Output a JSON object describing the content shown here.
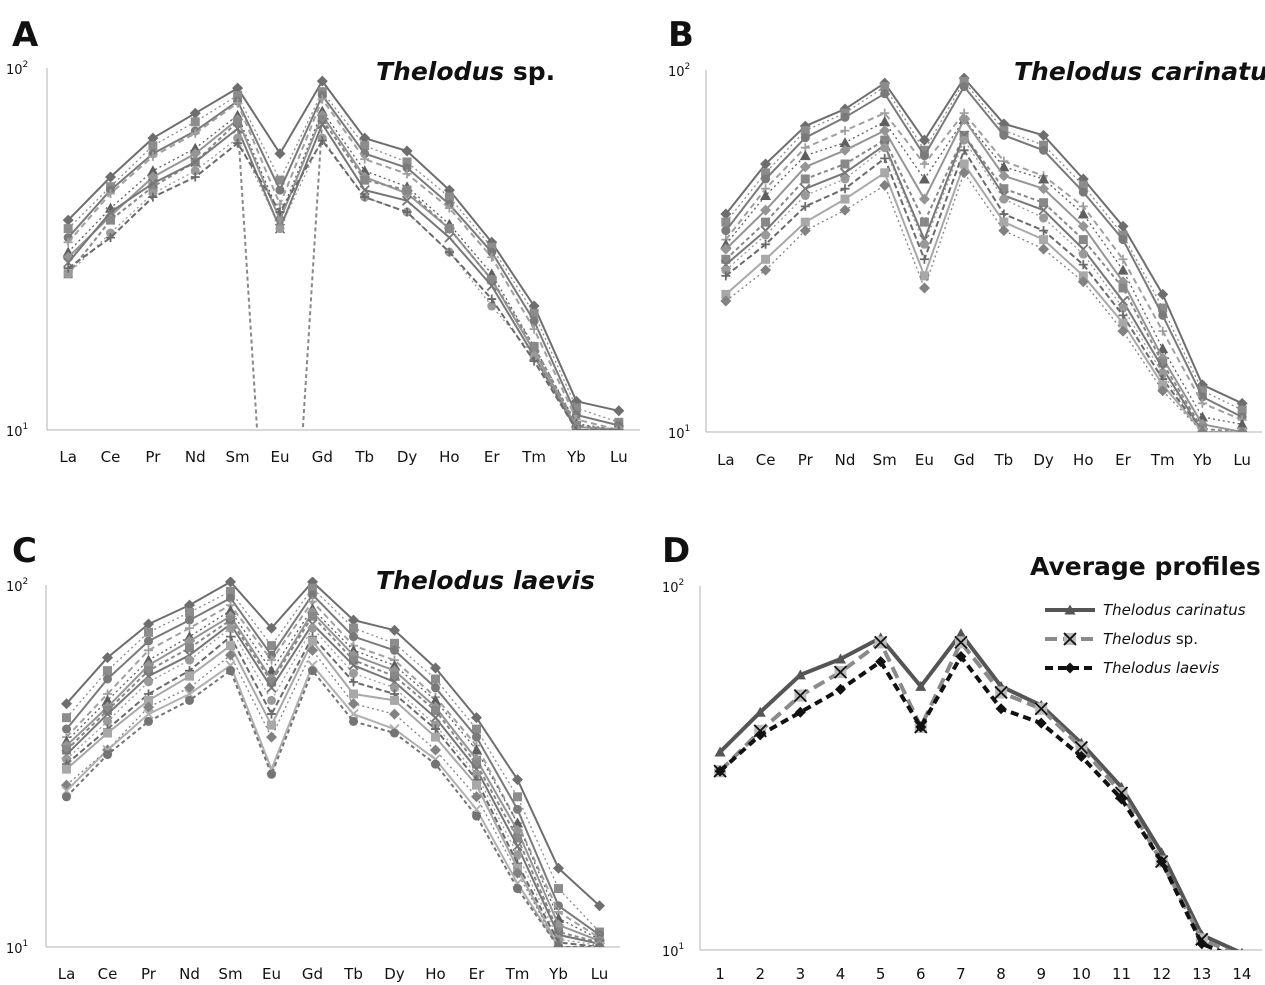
{
  "chart_data": [
    {
      "panel": "A",
      "type": "line",
      "title_italic": "Thelodus",
      "title_plain": "sp.",
      "yscale": "log",
      "ylim": [
        10,
        100
      ],
      "y_tick_labels": [
        "10",
        "10"
      ],
      "y_tick_exponents": [
        "2",
        "1"
      ],
      "categories": [
        "La",
        "Ce",
        "Pr",
        "Nd",
        "Sm",
        "Eu",
        "Gd",
        "Tb",
        "Dy",
        "Ho",
        "Er",
        "Tm",
        "Yb",
        "Lu"
      ],
      "series": [
        {
          "values": [
            38,
            50,
            64,
            75,
            88,
            58,
            92,
            64,
            59,
            46,
            33,
            22,
            12,
            11.3
          ]
        },
        {
          "values": [
            36,
            47,
            61,
            71,
            84,
            49,
            86,
            61,
            55,
            44,
            32,
            21,
            11.5,
            10.5
          ]
        },
        {
          "values": [
            34,
            46,
            58,
            67,
            81,
            46,
            84,
            58,
            53,
            42,
            31,
            20,
            11,
            10.3
          ]
        },
        {
          "values": [
            33,
            45,
            57,
            66,
            80,
            42,
            82,
            56,
            51,
            41,
            30,
            19,
            10.7,
            10
          ]
        },
        {
          "values": [
            31,
            41,
            52,
            60,
            74,
            39,
            76,
            52,
            47,
            37,
            27,
            17,
            10.4,
            10
          ]
        },
        {
          "values": [
            30,
            39,
            50,
            58,
            72,
            38,
            74,
            50,
            45,
            36,
            26,
            16.5,
            10.2,
            10
          ]
        },
        {
          "values": [
            27,
            38,
            47,
            55,
            71,
            1,
            72,
            49,
            46,
            36,
            26,
            17,
            10.3,
            10
          ]
        },
        {
          "values": [
            29,
            40,
            48,
            55,
            68,
            36,
            70,
            46,
            43,
            34,
            25,
            16,
            10,
            10
          ]
        },
        {
          "values": [
            27,
            35,
            45,
            52,
            64,
            36,
            64,
            44,
            40,
            31,
            22,
            16,
            10,
            10
          ]
        },
        {
          "values": [
            28,
            34,
            44,
            50,
            62,
            40,
            63,
            44,
            40,
            31,
            23,
            15.5,
            10,
            10
          ]
        }
      ]
    },
    {
      "panel": "B",
      "type": "line",
      "title_italic": "Thelodus carinatus",
      "yscale": "log",
      "ylim": [
        10,
        100
      ],
      "y_tick_labels": [
        "10",
        "10"
      ],
      "y_tick_exponents": [
        "2",
        "1"
      ],
      "categories": [
        "La",
        "Ce",
        "Pr",
        "Nd",
        "Sm",
        "Eu",
        "Gd",
        "Tb",
        "Dy",
        "Ho",
        "Er",
        "Tm",
        "Yb",
        "Lu"
      ],
      "series": [
        {
          "values": [
            40,
            55,
            70,
            78,
            92,
            64,
            95,
            71,
            66,
            50,
            37,
            24,
            13.5,
            12
          ]
        },
        {
          "values": [
            38,
            52,
            68,
            76,
            90,
            60,
            93,
            68,
            62,
            48,
            35,
            22,
            13,
            11.5
          ]
        },
        {
          "values": [
            36,
            50,
            65,
            74,
            86,
            58,
            90,
            66,
            60,
            46,
            34,
            21,
            12.5,
            11
          ]
        },
        {
          "values": [
            34,
            47,
            61,
            68,
            76,
            55,
            76,
            56,
            51,
            42,
            30,
            19,
            12,
            10.8
          ]
        },
        {
          "values": [
            33,
            45,
            58,
            63,
            72,
            50,
            73,
            54,
            50,
            40,
            28,
            17,
            11,
            10.5
          ]
        },
        {
          "values": [
            32,
            41,
            54,
            60,
            68,
            44,
            73,
            51,
            47,
            37,
            26,
            16,
            10.5,
            10
          ]
        },
        {
          "values": [
            30,
            38,
            50,
            55,
            64,
            38,
            66,
            47,
            43,
            34,
            25,
            15.5,
            10.2,
            10
          ]
        },
        {
          "values": [
            29,
            36,
            47,
            52,
            62,
            34,
            66,
            45,
            41,
            32,
            23,
            15,
            10,
            10
          ]
        },
        {
          "values": [
            28,
            35,
            45,
            50,
            61,
            33,
            64,
            44,
            39,
            31,
            22,
            14.5,
            10,
            10
          ]
        },
        {
          "values": [
            27,
            33,
            42,
            47,
            57,
            30,
            60,
            40,
            36,
            29,
            21,
            14,
            10,
            10
          ]
        },
        {
          "values": [
            24,
            30,
            38,
            44,
            52,
            27,
            55,
            38,
            34,
            27,
            20,
            13.5,
            10,
            10
          ]
        },
        {
          "values": [
            23,
            28,
            36,
            41,
            48,
            25,
            52,
            36,
            32,
            26,
            19,
            13,
            10,
            10
          ]
        }
      ]
    },
    {
      "panel": "C",
      "type": "line",
      "title_italic": "Thelodus laevis",
      "yscale": "log",
      "ylim": [
        10,
        100
      ],
      "y_tick_labels": [
        "10",
        "10"
      ],
      "y_tick_exponents": [
        "2",
        "1"
      ],
      "categories": [
        "La",
        "Ce",
        "Pr",
        "Nd",
        "Sm",
        "Eu",
        "Gd",
        "Tb",
        "Dy",
        "Ho",
        "Er",
        "Tm",
        "Yb",
        "Lu"
      ],
      "series": [
        {
          "values": [
            47,
            63,
            78,
            88,
            102,
            76,
            102,
            80,
            75,
            59,
            43,
            29,
            16.5,
            13
          ]
        },
        {
          "values": [
            43,
            58,
            74,
            84,
            96,
            68,
            98,
            76,
            69,
            55,
            40,
            26,
            14.5,
            11
          ]
        },
        {
          "values": [
            40,
            55,
            70,
            80,
            92,
            64,
            94,
            72,
            66,
            52,
            38,
            24,
            13,
            10.8
          ]
        },
        {
          "values": [
            38,
            50,
            66,
            76,
            88,
            62,
            90,
            68,
            62,
            49,
            36,
            22,
            12.5,
            10.6
          ]
        },
        {
          "values": [
            37,
            48,
            62,
            72,
            85,
            58,
            86,
            66,
            60,
            48,
            35,
            22,
            12,
            10.5
          ]
        },
        {
          "values": [
            36,
            46,
            60,
            70,
            82,
            55,
            84,
            64,
            58,
            46,
            33,
            21,
            11.5,
            10.4
          ]
        },
        {
          "values": [
            35,
            45,
            58,
            67,
            80,
            54,
            82,
            62,
            56,
            45,
            32,
            20,
            11,
            10.3
          ]
        },
        {
          "values": [
            34,
            44,
            56,
            64,
            78,
            52,
            78,
            60,
            54,
            43,
            31,
            19,
            10.8,
            10.2
          ]
        },
        {
          "values": [
            33,
            42,
            54,
            62,
            76,
            48,
            76,
            57,
            52,
            41,
            30,
            18,
            10.5,
            10.1
          ]
        },
        {
          "values": [
            32,
            40,
            50,
            58,
            72,
            44,
            72,
            54,
            50,
            40,
            29,
            17,
            10.3,
            10
          ]
        },
        {
          "values": [
            31,
            39,
            48,
            56,
            68,
            41,
            70,
            50,
            48,
            38,
            28,
            16.5,
            10,
            10
          ]
        },
        {
          "values": [
            28,
            35,
            46,
            52,
            64,
            38,
            66,
            47,
            44,
            35,
            26,
            16,
            10,
            10
          ]
        },
        {
          "values": [
            27,
            35,
            44,
            50,
            60,
            31,
            60,
            44,
            40,
            33,
            24,
            15,
            10,
            10
          ]
        },
        {
          "values": [
            26,
            34,
            42,
            48,
            58,
            30,
            58,
            42,
            39,
            32,
            23,
            14.5,
            10,
            10
          ]
        }
      ]
    },
    {
      "panel": "D",
      "type": "line",
      "title": "Average profiles",
      "yscale": "log",
      "ylim": [
        10,
        100
      ],
      "y_tick_labels": [
        "10",
        "10"
      ],
      "y_tick_exponents": [
        "2",
        "1"
      ],
      "categories": [
        "1",
        "2",
        "3",
        "4",
        "5",
        "6",
        "7",
        "8",
        "9",
        "10",
        "11",
        "12",
        "13",
        "14"
      ],
      "legend_position": "top-right",
      "series": [
        {
          "name": "Thelodus carinatus",
          "name_italic": "Thelodus carinatus",
          "name_plain": "",
          "color": "#555555",
          "dash": "solid",
          "marker": "triangle",
          "values": [
            35,
            45,
            57,
            63,
            72,
            53,
            74,
            53,
            47,
            37,
            28,
            18.5,
            11,
            9.8
          ]
        },
        {
          "name": "Thelodus sp.",
          "name_italic": "Thelodus",
          "name_plain": " sp.",
          "color": "#8a8a8a",
          "dash": "dashed",
          "marker": "x-square",
          "values": [
            31,
            40,
            50,
            58,
            70,
            41,
            70,
            51,
            46,
            36,
            27,
            17.5,
            10.7,
            9.6
          ]
        },
        {
          "name": "Thelodus laevis",
          "name_italic": "Thelodus laevis",
          "name_plain": "",
          "color": "#111111",
          "dash": "dashed",
          "marker": "diamond",
          "values": [
            31,
            39,
            45,
            52,
            62,
            41,
            64,
            46,
            42,
            34,
            26,
            17.5,
            10.4,
            9.4
          ]
        }
      ]
    }
  ]
}
